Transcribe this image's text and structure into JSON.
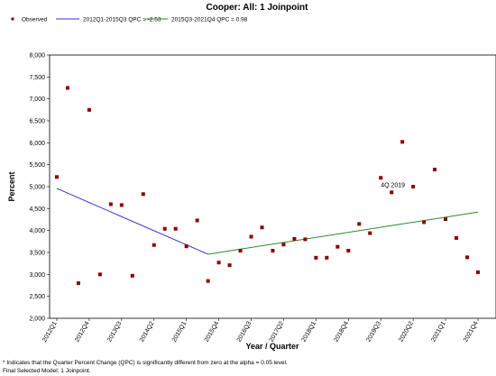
{
  "chart_data": {
    "type": "scatter",
    "title": "Cooper: All: 1 Joinpoint",
    "xlabel": "Year / Quarter",
    "ylabel": "Percent",
    "ylim": [
      2000,
      8000
    ],
    "yticks": [
      "2,000",
      "2,500",
      "3,000",
      "3,500",
      "4,000",
      "4,500",
      "5,000",
      "5,500",
      "6,000",
      "6,500",
      "7,000",
      "7,500",
      "8,000"
    ],
    "ytick_values": [
      2000,
      2500,
      3000,
      3500,
      4000,
      4500,
      5000,
      5500,
      6000,
      6500,
      7000,
      7500,
      8000
    ],
    "x_categories": [
      "2012Q1",
      "2012Q2",
      "2012Q3",
      "2012Q4",
      "2013Q1",
      "2013Q2",
      "2013Q3",
      "2013Q4",
      "2014Q1",
      "2014Q2",
      "2014Q3",
      "2014Q4",
      "2015Q1",
      "2015Q2",
      "2015Q3",
      "2015Q4",
      "2016Q1",
      "2016Q2",
      "2016Q3",
      "2016Q4",
      "2017Q1",
      "2017Q2",
      "2017Q3",
      "2017Q4",
      "2018Q1",
      "2018Q2",
      "2018Q3",
      "2018Q4",
      "2019Q1",
      "2019Q2",
      "2019Q3",
      "2019Q4",
      "2020Q1",
      "2020Q2",
      "2020Q3",
      "2020Q4",
      "2021Q1",
      "2021Q2",
      "2021Q3",
      "2021Q4"
    ],
    "x_tick_labels": [
      {
        "index": 0,
        "label": "2012Q1"
      },
      {
        "index": 3,
        "label": "2012Q4"
      },
      {
        "index": 6,
        "label": "2013Q3"
      },
      {
        "index": 9,
        "label": "2014Q2"
      },
      {
        "index": 12,
        "label": "2015Q1"
      },
      {
        "index": 15,
        "label": "2015Q4"
      },
      {
        "index": 18,
        "label": "2016Q3"
      },
      {
        "index": 21,
        "label": "2017Q2"
      },
      {
        "index": 24,
        "label": "2018Q1"
      },
      {
        "index": 27,
        "label": "2018Q4"
      },
      {
        "index": 30,
        "label": "2019Q3"
      },
      {
        "index": 33,
        "label": "2020Q2"
      },
      {
        "index": 36,
        "label": "2021Q1"
      },
      {
        "index": 39,
        "label": "2021Q4"
      }
    ],
    "series": [
      {
        "name": "Observed",
        "kind": "points",
        "color": "#8b0000",
        "values": [
          5220,
          7250,
          2800,
          6750,
          3000,
          4600,
          4580,
          2970,
          4830,
          3670,
          4040,
          4040,
          3640,
          4230,
          2850,
          3270,
          3210,
          3540,
          3860,
          4070,
          3540,
          3680,
          3810,
          3800,
          3380,
          3380,
          3630,
          3540,
          4150,
          3940,
          5200,
          4870,
          6020,
          5000,
          4190,
          5390,
          4260,
          3830,
          3390,
          3050
        ]
      },
      {
        "name": "2012Q1-2015Q3 QPC = -2.53",
        "kind": "line",
        "color": "#3333cc",
        "start": {
          "index": 0,
          "value": 4960
        },
        "end": {
          "index": 14,
          "value": 3460
        }
      },
      {
        "name": "2015Q3-2021Q4 QPC = 0.98",
        "kind": "line",
        "color": "#2a8a2a",
        "start": {
          "index": 14,
          "value": 3460
        },
        "end": {
          "index": 39,
          "value": 4420
        }
      }
    ],
    "annotations": [
      {
        "text": "4Q 2019",
        "index": 31,
        "value": 4870
      }
    ],
    "legend_position": "top",
    "grid": false
  },
  "footnotes": [
    "* Indicates that the Quarter Percent Change (QPC) is significantly different from zero at the alpha = 0.05 level.",
    "Final Selected Model: 1 Joinpoint."
  ]
}
